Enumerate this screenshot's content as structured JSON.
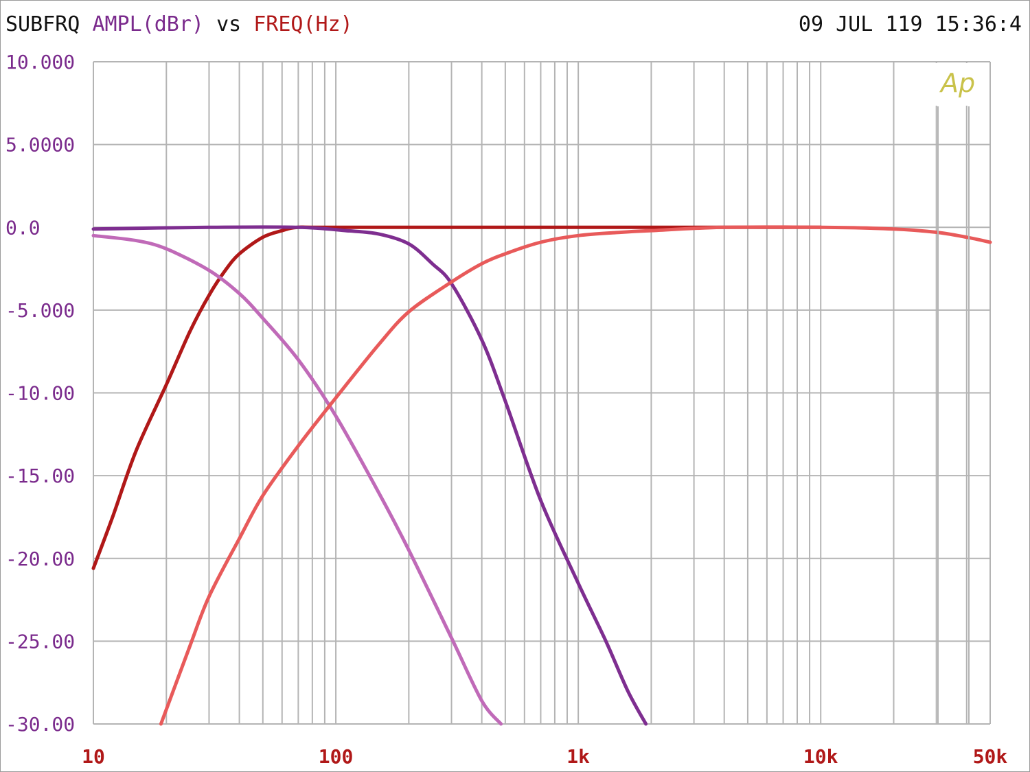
{
  "header": {
    "name": "SUBFRQ",
    "ampl": "AMPL(dBr)",
    "vs": "vs",
    "freq": "FREQ(Hz)",
    "datetime": "09 JUL 119 15:36:4"
  },
  "logo": "Ap",
  "colors": {
    "grid": "#b4b4b4",
    "ytick_text": "#7a2a8c",
    "xtick_text": "#b01818"
  },
  "chart_data": {
    "type": "line",
    "xscale": "log",
    "xlim": [
      10,
      50000
    ],
    "ylim": [
      -30,
      10
    ],
    "grid": true,
    "yticks": [
      {
        "value": 10,
        "label": "10.000"
      },
      {
        "value": 5,
        "label": "5.0000"
      },
      {
        "value": 0,
        "label": "0.0"
      },
      {
        "value": -5,
        "label": "-5.000"
      },
      {
        "value": -10,
        "label": "-10.00"
      },
      {
        "value": -15,
        "label": "-15.00"
      },
      {
        "value": -20,
        "label": "-20.00"
      },
      {
        "value": -25,
        "label": "-25.00"
      },
      {
        "value": -30,
        "label": "-30.00"
      }
    ],
    "xticks": [
      {
        "value": 10,
        "label": "10"
      },
      {
        "value": 100,
        "label": "100"
      },
      {
        "value": 1000,
        "label": "1k"
      },
      {
        "value": 10000,
        "label": "10k"
      },
      {
        "value": 50000,
        "label": "50k"
      }
    ],
    "series": [
      {
        "color": "#b01818",
        "x": [
          10,
          12,
          15,
          20,
          25,
          30,
          35,
          40,
          50,
          60,
          70,
          100,
          1000,
          4000,
          10000
        ],
        "y": [
          -20.6,
          -17.5,
          -13.5,
          -9.5,
          -6.3,
          -4.1,
          -2.6,
          -1.6,
          -0.6,
          -0.2,
          0,
          0,
          0,
          0,
          0
        ]
      },
      {
        "color": "#7e2e90",
        "x": [
          10,
          30,
          70,
          110,
          150,
          200,
          250,
          300,
          400,
          500,
          700,
          1000,
          1300,
          1600,
          1900
        ],
        "y": [
          -0.1,
          0,
          0,
          -0.2,
          -0.4,
          -1,
          -2.2,
          -3.4,
          -6.8,
          -10.5,
          -16.5,
          -21.5,
          -25,
          -28,
          -30
        ]
      },
      {
        "color": "#c06ab8",
        "x": [
          10,
          15,
          20,
          30,
          40,
          50,
          70,
          100,
          150,
          200,
          300,
          400,
          480
        ],
        "y": [
          -0.5,
          -0.8,
          -1.3,
          -2.6,
          -4.0,
          -5.5,
          -8.0,
          -11.4,
          -16.0,
          -19.5,
          -24.8,
          -28.6,
          -30
        ]
      },
      {
        "color": "#e85a5a",
        "x": [
          19,
          25,
          30,
          40,
          50,
          70,
          100,
          150,
          200,
          300,
          400,
          500,
          700,
          1000,
          1500,
          2000,
          4000,
          10000,
          20000,
          30000,
          40000,
          50000
        ],
        "y": [
          -30,
          -25.3,
          -22.3,
          -18.8,
          -16.2,
          -13.2,
          -10.3,
          -7.1,
          -5.1,
          -3.3,
          -2.2,
          -1.6,
          -0.9,
          -0.5,
          -0.3,
          -0.2,
          0,
          0,
          -0.1,
          -0.3,
          -0.6,
          -0.9
        ]
      }
    ]
  }
}
